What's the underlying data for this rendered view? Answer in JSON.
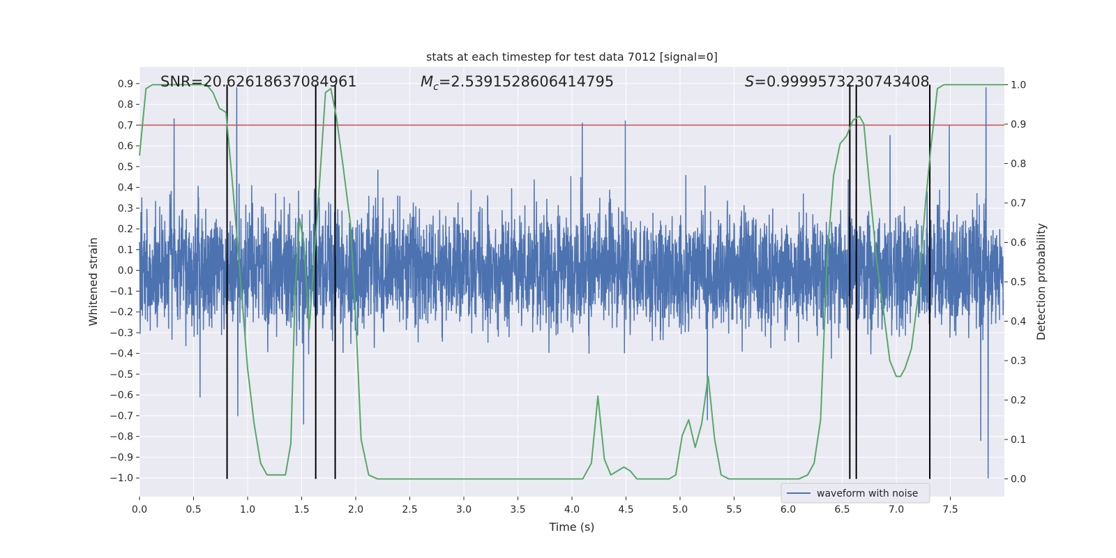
{
  "chart_data": {
    "type": "line",
    "title": "stats at each timestep for test data 7012 [signal=0]",
    "xlabel": "Time (s)",
    "ylabel": "Whitened strain",
    "ylabel_right": "Detection probability",
    "xlim": [
      0.0,
      8.0
    ],
    "ylim": [
      -1.09,
      0.98
    ],
    "ylim_right": [
      -0.045,
      1.045
    ],
    "x_ticks": [
      "0.0",
      "0.5",
      "1.0",
      "1.5",
      "2.0",
      "2.5",
      "3.0",
      "3.5",
      "4.0",
      "4.5",
      "5.0",
      "5.5",
      "6.0",
      "6.5",
      "7.0",
      "7.5"
    ],
    "y_ticks": [
      "0.9",
      "0.8",
      "0.7",
      "0.6",
      "0.5",
      "0.4",
      "0.3",
      "0.2",
      "0.1",
      "0.0",
      "−0.1",
      "−0.2",
      "−0.3",
      "−0.4",
      "−0.5",
      "−0.6",
      "−0.7",
      "−0.8",
      "−0.9",
      "−1.0"
    ],
    "y_ticks_right": [
      "1.0",
      "0.9",
      "0.8",
      "0.7",
      "0.6",
      "0.5",
      "0.4",
      "0.3",
      "0.2",
      "0.1",
      "0.0"
    ],
    "threshold": {
      "value": 0.7,
      "color": "#c44e52"
    },
    "annotations": {
      "snr": "SNR=20.62618637084961",
      "mc_symbol": "M",
      "mc_sub": "c",
      "mc_value": "=2.5391528606414795",
      "s_symbol": "S",
      "s_value": "=0.9999573230743408"
    },
    "vlines": [
      0.81,
      1.63,
      1.81,
      6.57,
      6.63,
      7.31
    ],
    "strain_series": {
      "name": "waveform with noise",
      "color": "#4c72b0",
      "n_samples": 4096,
      "spikes": [
        {
          "x": 0.9,
          "y": 0.88
        },
        {
          "x": 0.32,
          "y": 0.73
        },
        {
          "x": 0.91,
          "y": -0.7
        },
        {
          "x": 1.52,
          "y": -0.74
        },
        {
          "x": 4.1,
          "y": 0.71
        },
        {
          "x": 4.5,
          "y": 0.72
        },
        {
          "x": 5.26,
          "y": -0.72
        },
        {
          "x": 6.64,
          "y": -0.7
        },
        {
          "x": 7.84,
          "y": 0.88
        },
        {
          "x": 7.86,
          "y": -1.0
        },
        {
          "x": 7.79,
          "y": -0.82
        },
        {
          "x": 0.56,
          "y": -0.61
        },
        {
          "x": 7.5,
          "y": 0.7
        },
        {
          "x": 6.95,
          "y": 0.65
        }
      ]
    },
    "probability_series": {
      "name": "detection probability",
      "color": "#55a868",
      "points": [
        [
          0.0,
          0.82
        ],
        [
          0.06,
          0.99
        ],
        [
          0.12,
          1.0
        ],
        [
          0.5,
          1.0
        ],
        [
          0.62,
          1.0
        ],
        [
          0.68,
          0.98
        ],
        [
          0.74,
          0.94
        ],
        [
          0.8,
          0.93
        ],
        [
          0.86,
          0.75
        ],
        [
          0.93,
          0.52
        ],
        [
          1.0,
          0.28
        ],
        [
          1.06,
          0.14
        ],
        [
          1.12,
          0.04
        ],
        [
          1.18,
          0.01
        ],
        [
          1.3,
          0.01
        ],
        [
          1.35,
          0.01
        ],
        [
          1.4,
          0.09
        ],
        [
          1.44,
          0.48
        ],
        [
          1.48,
          0.66
        ],
        [
          1.52,
          0.6
        ],
        [
          1.57,
          0.38
        ],
        [
          1.6,
          0.5
        ],
        [
          1.67,
          0.77
        ],
        [
          1.72,
          0.98
        ],
        [
          1.77,
          0.99
        ],
        [
          1.82,
          0.92
        ],
        [
          1.88,
          0.8
        ],
        [
          1.95,
          0.65
        ],
        [
          2.0,
          0.41
        ],
        [
          2.05,
          0.1
        ],
        [
          2.12,
          0.01
        ],
        [
          2.2,
          0.0
        ],
        [
          4.1,
          0.0
        ],
        [
          4.18,
          0.04
        ],
        [
          4.24,
          0.21
        ],
        [
          4.3,
          0.05
        ],
        [
          4.36,
          0.01
        ],
        [
          4.42,
          0.02
        ],
        [
          4.48,
          0.03
        ],
        [
          4.54,
          0.02
        ],
        [
          4.6,
          0.0
        ],
        [
          4.9,
          0.0
        ],
        [
          4.96,
          0.01
        ],
        [
          5.02,
          0.11
        ],
        [
          5.08,
          0.15
        ],
        [
          5.14,
          0.08
        ],
        [
          5.2,
          0.14
        ],
        [
          5.26,
          0.26
        ],
        [
          5.32,
          0.1
        ],
        [
          5.38,
          0.01
        ],
        [
          5.45,
          0.0
        ],
        [
          5.8,
          0.0
        ],
        [
          6.1,
          0.0
        ],
        [
          6.18,
          0.01
        ],
        [
          6.24,
          0.04
        ],
        [
          6.3,
          0.15
        ],
        [
          6.36,
          0.56
        ],
        [
          6.42,
          0.77
        ],
        [
          6.48,
          0.85
        ],
        [
          6.54,
          0.87
        ],
        [
          6.6,
          0.91
        ],
        [
          6.66,
          0.92
        ],
        [
          6.7,
          0.9
        ],
        [
          6.76,
          0.72
        ],
        [
          6.82,
          0.55
        ],
        [
          6.88,
          0.43
        ],
        [
          6.94,
          0.3
        ],
        [
          7.0,
          0.26
        ],
        [
          7.04,
          0.26
        ],
        [
          7.08,
          0.28
        ],
        [
          7.14,
          0.33
        ],
        [
          7.2,
          0.46
        ],
        [
          7.27,
          0.7
        ],
        [
          7.32,
          0.84
        ],
        [
          7.38,
          0.99
        ],
        [
          7.44,
          1.0
        ],
        [
          8.0,
          1.0
        ]
      ]
    }
  }
}
